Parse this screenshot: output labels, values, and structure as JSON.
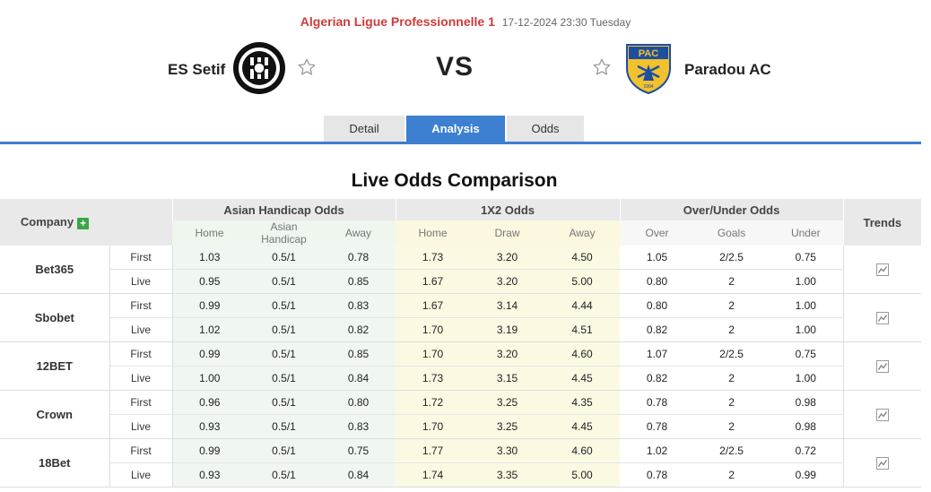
{
  "match": {
    "league": "Algerian Ligue Professionnelle 1",
    "datetime": "17-12-2024 23:30 Tuesday",
    "home_team": "ES Setif",
    "away_team": "Paradou AC",
    "vs": "VS",
    "away_logo_text": "PAC",
    "away_logo_year": "1994"
  },
  "tabs": [
    {
      "label": "Detail",
      "active": false
    },
    {
      "label": "Analysis",
      "active": true
    },
    {
      "label": "Odds",
      "active": false
    }
  ],
  "section_title": "Live Odds Comparison",
  "table": {
    "headers": {
      "company": "Company",
      "asian_handicap": "Asian Handicap Odds",
      "x12": "1X2 Odds",
      "over_under": "Over/Under Odds",
      "trends": "Trends"
    },
    "subheaders": {
      "ah_home": "Home",
      "ah_handicap": "Asian Handicap",
      "ah_away": "Away",
      "x12_home": "Home",
      "x12_draw": "Draw",
      "x12_away": "Away",
      "ou_over": "Over",
      "ou_goals": "Goals",
      "ou_under": "Under"
    },
    "rows": [
      {
        "company": "Bet365",
        "first": {
          "kind": "First",
          "ah_home": "1.03",
          "ah_line": "0.5/1",
          "ah_away": "0.78",
          "h": "1.73",
          "d": "3.20",
          "a": "4.50",
          "over": "1.05",
          "goals": "2/2.5",
          "under": "0.75"
        },
        "live": {
          "kind": "Live",
          "ah_home": "0.95",
          "ah_line": "0.5/1",
          "ah_away": "0.85",
          "h": "1.67",
          "d": "3.20",
          "a": "5.00",
          "over": "0.80",
          "goals": "2",
          "under": "1.00"
        }
      },
      {
        "company": "Sbobet",
        "first": {
          "kind": "First",
          "ah_home": "0.99",
          "ah_line": "0.5/1",
          "ah_away": "0.83",
          "h": "1.67",
          "d": "3.14",
          "a": "4.44",
          "over": "0.80",
          "goals": "2",
          "under": "1.00"
        },
        "live": {
          "kind": "Live",
          "ah_home": "1.02",
          "ah_line": "0.5/1",
          "ah_away": "0.82",
          "h": "1.70",
          "d": "3.19",
          "a": "4.51",
          "over": "0.82",
          "goals": "2",
          "under": "1.00"
        }
      },
      {
        "company": "12BET",
        "first": {
          "kind": "First",
          "ah_home": "0.99",
          "ah_line": "0.5/1",
          "ah_away": "0.85",
          "h": "1.70",
          "d": "3.20",
          "a": "4.60",
          "over": "1.07",
          "goals": "2/2.5",
          "under": "0.75"
        },
        "live": {
          "kind": "Live",
          "ah_home": "1.00",
          "ah_line": "0.5/1",
          "ah_away": "0.84",
          "h": "1.73",
          "d": "3.15",
          "a": "4.45",
          "over": "0.82",
          "goals": "2",
          "under": "1.00"
        }
      },
      {
        "company": "Crown",
        "first": {
          "kind": "First",
          "ah_home": "0.96",
          "ah_line": "0.5/1",
          "ah_away": "0.80",
          "h": "1.72",
          "d": "3.25",
          "a": "4.35",
          "over": "0.78",
          "goals": "2",
          "under": "0.98"
        },
        "live": {
          "kind": "Live",
          "ah_home": "0.93",
          "ah_line": "0.5/1",
          "ah_away": "0.83",
          "h": "1.70",
          "d": "3.25",
          "a": "4.45",
          "over": "0.78",
          "goals": "2",
          "under": "0.98"
        }
      },
      {
        "company": "18Bet",
        "first": {
          "kind": "First",
          "ah_home": "0.99",
          "ah_line": "0.5/1",
          "ah_away": "0.75",
          "h": "1.77",
          "d": "3.30",
          "a": "4.60",
          "over": "1.02",
          "goals": "2/2.5",
          "under": "0.72"
        },
        "live": {
          "kind": "Live",
          "ah_home": "0.93",
          "ah_line": "0.5/1",
          "ah_away": "0.84",
          "h": "1.74",
          "d": "3.35",
          "a": "5.00",
          "over": "0.78",
          "goals": "2",
          "under": "0.99"
        }
      }
    ]
  },
  "colors": {
    "accent_blue": "#3d7fd1",
    "league_red": "#d03a3a",
    "ah_bg": "#f0f7f0",
    "x12_bg": "#fcf9e3",
    "plus_green": "#3aa64a"
  },
  "icons": {
    "favorite": "star-outline-icon",
    "add": "plus-icon",
    "trend": "line-chart-icon"
  }
}
